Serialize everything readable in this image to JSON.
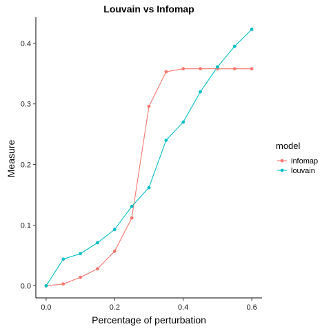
{
  "chart_data": {
    "type": "line",
    "title": "Louvain vs Infomap",
    "xlabel": "Percentage of perturbation",
    "ylabel": "Measure",
    "xlim": [
      -0.03,
      0.63
    ],
    "ylim": [
      -0.02,
      0.443
    ],
    "xticks": [
      0.0,
      0.2,
      0.4,
      0.6
    ],
    "xtick_labels": [
      "0.0",
      "0.2",
      "0.4",
      "0.6"
    ],
    "yticks": [
      0.0,
      0.1,
      0.2,
      0.3,
      0.4
    ],
    "ytick_labels": [
      "0.0",
      "0.1",
      "0.2",
      "0.3",
      "0.4"
    ],
    "grid": false,
    "legend": {
      "title": "model",
      "position": "right"
    },
    "x": [
      0.0,
      0.05,
      0.1,
      0.15,
      0.2,
      0.25,
      0.3,
      0.35,
      0.4,
      0.45,
      0.5,
      0.55,
      0.6
    ],
    "series": [
      {
        "name": "infomap",
        "color": "#F8766D",
        "values": [
          0.0,
          0.003,
          0.014,
          0.028,
          0.057,
          0.112,
          0.296,
          0.353,
          0.358,
          0.358,
          0.358,
          0.358,
          0.358
        ]
      },
      {
        "name": "louvain",
        "color": "#00BFC4",
        "values": [
          0.0,
          0.044,
          0.053,
          0.071,
          0.093,
          0.131,
          0.162,
          0.24,
          0.27,
          0.32,
          0.361,
          0.395,
          0.423
        ]
      }
    ]
  }
}
